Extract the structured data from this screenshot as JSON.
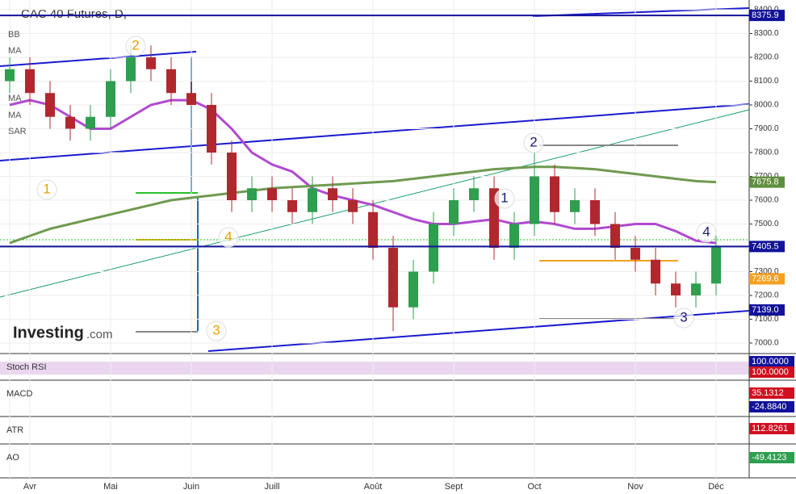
{
  "chart_data": {
    "type": "candlestick",
    "title": "CAC 40 Futures, D,",
    "categories": [
      "",
      "Avr",
      null,
      null,
      null,
      "Mai",
      null,
      null,
      null,
      "Juin",
      null,
      null,
      null,
      "Juill",
      null,
      null,
      null,
      null,
      "Août",
      null,
      null,
      null,
      "Sept",
      null,
      null,
      null,
      "Oct",
      null,
      null,
      null,
      null,
      "Nov",
      null,
      null,
      null,
      "Déc"
    ],
    "open": [
      8100,
      8150,
      8050,
      7950,
      7900,
      7950,
      8100,
      8200,
      8150,
      8050,
      8000,
      7800,
      7600,
      7650,
      7600,
      7550,
      7650,
      7600,
      7550,
      7400,
      7150,
      7300,
      7500,
      7600,
      7650,
      7400,
      7500,
      7700,
      7550,
      7600,
      7500,
      7400,
      7350,
      7250,
      7200,
      7250
    ],
    "high": [
      8200,
      8200,
      8100,
      8000,
      8000,
      8150,
      8250,
      8250,
      8200,
      8100,
      8050,
      7850,
      7700,
      7700,
      7650,
      7700,
      7700,
      7650,
      7600,
      7450,
      7350,
      7550,
      7650,
      7700,
      7700,
      7550,
      7800,
      7750,
      7650,
      7650,
      7550,
      7450,
      7400,
      7300,
      7300,
      7450
    ],
    "low": [
      8050,
      8000,
      7900,
      7850,
      7850,
      7900,
      8050,
      8100,
      8000,
      8000,
      7750,
      7550,
      7550,
      7550,
      7500,
      7500,
      7550,
      7500,
      7350,
      7050,
      7100,
      7250,
      7450,
      7550,
      7350,
      7350,
      7450,
      7500,
      7500,
      7450,
      7350,
      7300,
      7200,
      7150,
      7150,
      7200
    ],
    "close": [
      8150,
      8050,
      7950,
      7900,
      7950,
      8100,
      8200,
      8150,
      8050,
      8000,
      7800,
      7600,
      7650,
      7600,
      7550,
      7650,
      7600,
      7550,
      7400,
      7150,
      7300,
      7500,
      7600,
      7650,
      7400,
      7500,
      7700,
      7550,
      7600,
      7500,
      7400,
      7350,
      7250,
      7200,
      7250,
      7405.5
    ],
    "up_color": "#2e9e4f",
    "down_color": "#b0282e",
    "overlays": [
      {
        "color": "#b04ad0",
        "values": [
          8000,
          8020,
          8000,
          7950,
          7900,
          7900,
          7950,
          8000,
          8020,
          8020,
          7980,
          7900,
          7800,
          7750,
          7720,
          7650,
          7620,
          7600,
          7580,
          7550,
          7520,
          7500,
          7500,
          7510,
          7520,
          7500,
          7510,
          7500,
          7480,
          7480,
          7490,
          7500,
          7500,
          7470,
          7430,
          7420
        ]
      },
      {
        "color": "#6f9a50",
        "values": [
          7420,
          7450,
          7480,
          7500,
          7520,
          7540,
          7560,
          7580,
          7600,
          7610,
          7620,
          7630,
          7640,
          7650,
          7655,
          7660,
          7665,
          7670,
          7675,
          7680,
          7690,
          7700,
          7710,
          7720,
          7730,
          7735,
          7740,
          7740,
          7735,
          7730,
          7720,
          7710,
          7700,
          7690,
          7680,
          7675.8
        ]
      }
    ],
    "ylim": [
      7000,
      8400
    ],
    "yticks": [
      {
        "value": 7000,
        "label": "7000.0"
      },
      {
        "value": 7100,
        "label": "7100.0"
      },
      {
        "value": 7200,
        "label": "7200.0"
      },
      {
        "value": 7300,
        "label": "7300.0"
      },
      {
        "value": 7400,
        "label": "7400.0"
      },
      {
        "value": 7500,
        "label": "7500.0"
      },
      {
        "value": 7600,
        "label": "7600.0"
      },
      {
        "value": 7700,
        "label": "7700.0"
      },
      {
        "value": 7800,
        "label": "7800.0"
      },
      {
        "value": 7900,
        "label": "7900.0"
      },
      {
        "value": 8000,
        "label": "8000.0"
      },
      {
        "value": 8100,
        "label": "8100.0"
      },
      {
        "value": 8200,
        "label": "8200.0"
      },
      {
        "value": 8300,
        "label": "8300.0"
      },
      {
        "value": 8400,
        "label": "8400.0"
      }
    ],
    "grid": true,
    "levels": [
      {
        "value": 8375.9,
        "label": "8375.9",
        "color": "#12129a"
      },
      {
        "value": 7675.8,
        "label": "7675.8",
        "color": "#5f8f3e"
      },
      {
        "value": 7405.5,
        "label": "7405.5",
        "color": "#12129a"
      },
      {
        "value": 7269.6,
        "label": "7269.6",
        "color": "#f5a020"
      },
      {
        "value": 7139.0,
        "label": "7139.0",
        "color": "#12129a"
      }
    ],
    "study_labels": [
      "BB",
      "MA",
      "MA",
      "MA",
      "SAR"
    ],
    "annotations": [
      {
        "text": "2",
        "color": "#e8a000"
      },
      {
        "text": "1",
        "color": "#e8a000"
      },
      {
        "text": "4",
        "color": "#e8a000"
      },
      {
        "text": "3",
        "color": "#e8a000"
      },
      {
        "text": "2",
        "color": "#1a1a70"
      },
      {
        "text": "1",
        "color": "#1a1a70"
      },
      {
        "text": "3",
        "color": "#1a1a70"
      },
      {
        "text": "4",
        "color": "#1a1a70"
      }
    ],
    "watermark": "Investing",
    "watermark_suffix": ".com",
    "indicators": [
      {
        "name": "Stoch RSI",
        "labels": [
          "100.0000",
          "100.0000"
        ],
        "colors": [
          "#12129a",
          "#d01020"
        ]
      },
      {
        "name": "MACD",
        "labels": [
          "35.1312",
          "-24.8840"
        ],
        "colors": [
          "#d01020",
          "#12129a"
        ]
      },
      {
        "name": "ATR",
        "labels": [
          "112.8261"
        ],
        "colors": [
          "#d01020"
        ]
      },
      {
        "name": "AO",
        "labels": [
          "-49.4123"
        ],
        "colors": [
          "#2e9e4f"
        ]
      }
    ]
  }
}
